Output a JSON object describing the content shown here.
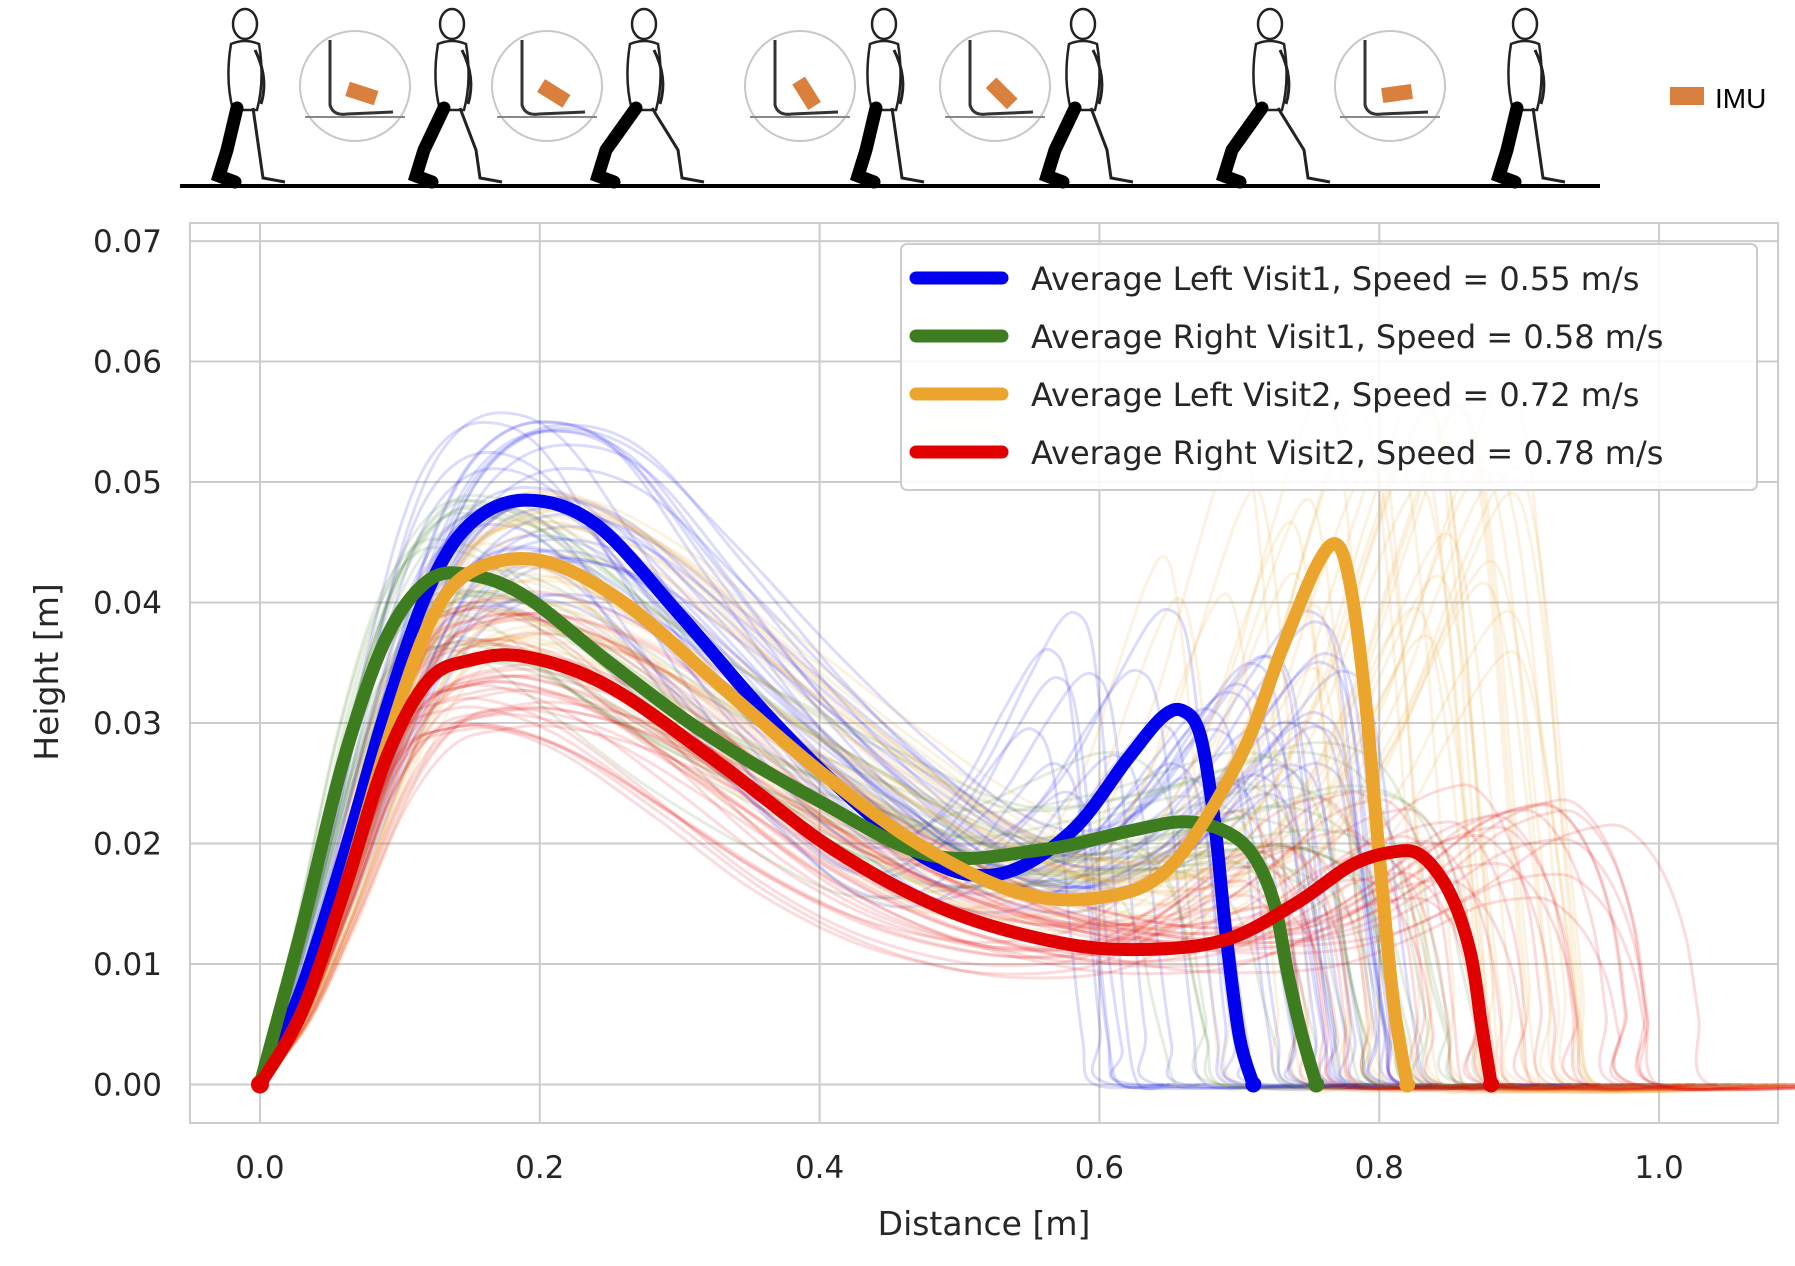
{
  "figure": {
    "imu_legend_label": "IMU",
    "imu_color": "#d9803e",
    "walker_icons": [
      "walking-figure-heel-strike",
      "walking-figure-foot-flat",
      "walking-figure-mid-stance",
      "walking-figure-heel-off",
      "walking-figure-toe-off",
      "walking-figure-swing"
    ],
    "foot_icons": [
      "foot-heel-strike-icon",
      "foot-flat-icon",
      "foot-heel-off-icon",
      "foot-toe-off-icon",
      "foot-swing-icon"
    ]
  },
  "chart_data": {
    "type": "line",
    "xlabel": "Distance [m]",
    "ylabel": "Height [m]",
    "xlim": [
      -0.05,
      1.085
    ],
    "ylim": [
      -0.0032,
      0.0715
    ],
    "xticks": [
      "0.0",
      "0.2",
      "0.4",
      "0.6",
      "0.8",
      "1.0"
    ],
    "yticks": [
      "0.00",
      "0.01",
      "0.02",
      "0.03",
      "0.04",
      "0.05",
      "0.06",
      "0.07"
    ],
    "grid": true,
    "legend_position": "top-right",
    "series": [
      {
        "name": "Average Left Visit1, Speed = 0.55 m/s",
        "color": "#0000ee",
        "x": [
          0.0,
          0.03,
          0.06,
          0.09,
          0.12,
          0.15,
          0.19,
          0.24,
          0.3,
          0.36,
          0.42,
          0.48,
          0.53,
          0.58,
          0.62,
          0.645,
          0.66,
          0.672,
          0.682,
          0.69,
          0.7,
          0.71
        ],
        "y": [
          0.0,
          0.008,
          0.019,
          0.031,
          0.041,
          0.0465,
          0.0485,
          0.0465,
          0.039,
          0.031,
          0.024,
          0.0185,
          0.0175,
          0.021,
          0.027,
          0.0305,
          0.031,
          0.029,
          0.022,
          0.013,
          0.004,
          0.0
        ]
      },
      {
        "name": "Average Right Visit1, Speed = 0.58 m/s",
        "color": "#3e7d1f",
        "x": [
          0.0,
          0.03,
          0.06,
          0.09,
          0.12,
          0.15,
          0.19,
          0.25,
          0.32,
          0.4,
          0.48,
          0.56,
          0.62,
          0.66,
          0.69,
          0.71,
          0.725,
          0.735,
          0.745,
          0.755
        ],
        "y": [
          0.0,
          0.013,
          0.027,
          0.037,
          0.0418,
          0.0423,
          0.0405,
          0.035,
          0.029,
          0.0235,
          0.019,
          0.0195,
          0.021,
          0.0218,
          0.021,
          0.019,
          0.015,
          0.009,
          0.004,
          0.0
        ]
      },
      {
        "name": "Average Left Visit2, Speed = 0.72 m/s",
        "color": "#eba52d",
        "x": [
          0.0,
          0.03,
          0.06,
          0.09,
          0.12,
          0.15,
          0.2,
          0.26,
          0.33,
          0.4,
          0.47,
          0.54,
          0.6,
          0.65,
          0.7,
          0.73,
          0.755,
          0.77,
          0.78,
          0.79,
          0.8,
          0.81,
          0.82
        ],
        "y": [
          0.0,
          0.006,
          0.016,
          0.028,
          0.038,
          0.0425,
          0.0435,
          0.04,
          0.033,
          0.026,
          0.02,
          0.016,
          0.0155,
          0.018,
          0.027,
          0.036,
          0.043,
          0.0448,
          0.041,
          0.032,
          0.019,
          0.007,
          0.0
        ]
      },
      {
        "name": "Average Right Visit2, Speed = 0.78 m/s",
        "color": "#e00000",
        "x": [
          0.0,
          0.03,
          0.06,
          0.09,
          0.12,
          0.15,
          0.19,
          0.25,
          0.33,
          0.41,
          0.49,
          0.57,
          0.63,
          0.69,
          0.74,
          0.78,
          0.81,
          0.83,
          0.85,
          0.865,
          0.873,
          0.88
        ],
        "y": [
          0.0,
          0.006,
          0.016,
          0.027,
          0.0335,
          0.0352,
          0.0355,
          0.033,
          0.0265,
          0.0195,
          0.0145,
          0.0118,
          0.0112,
          0.012,
          0.015,
          0.0182,
          0.0193,
          0.019,
          0.016,
          0.011,
          0.005,
          0.0
        ]
      }
    ]
  }
}
